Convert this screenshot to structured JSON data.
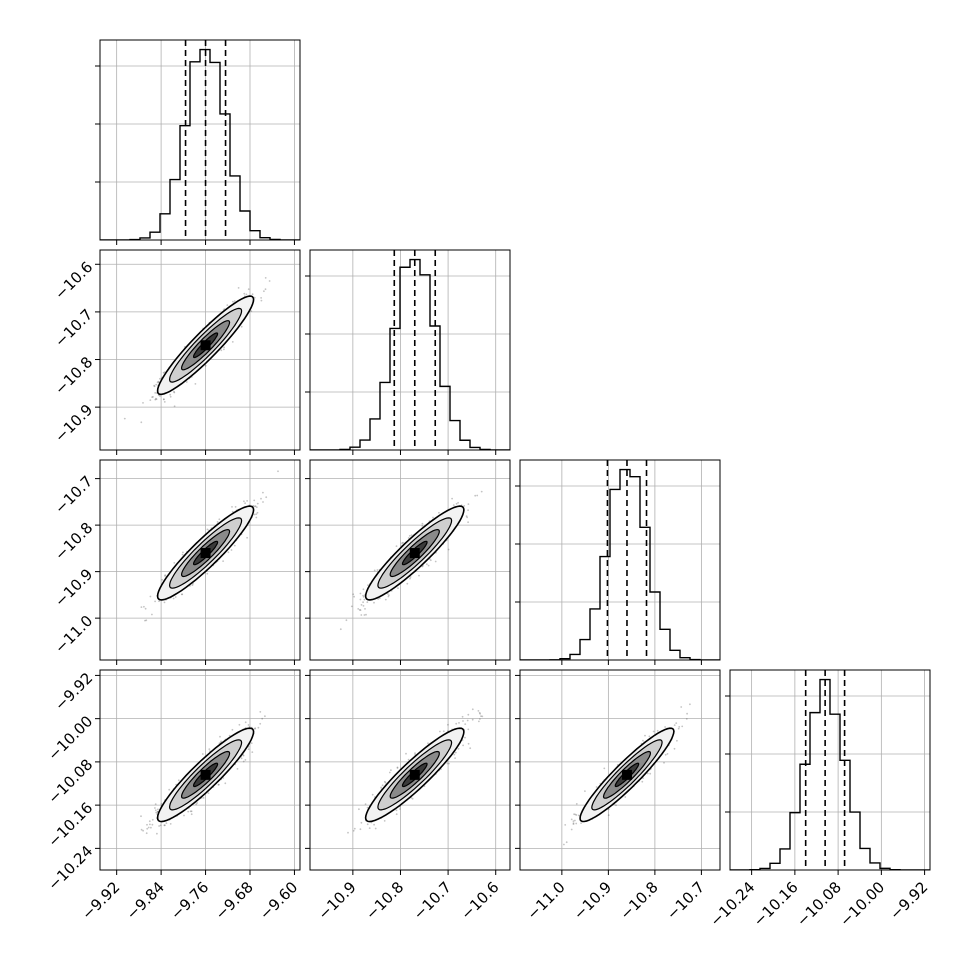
{
  "chart_data": {
    "type": "corner",
    "parameters": [
      "",
      "",
      "",
      ""
    ],
    "ranges": [
      [
        -9.95,
        -9.59
      ],
      [
        -10.99,
        -10.57
      ],
      [
        -11.09,
        -10.66
      ],
      [
        -10.28,
        -9.91
      ]
    ],
    "centers": [
      -9.76,
      -10.77,
      -10.86,
      -10.104
    ],
    "sigmas": [
      0.036,
      0.043,
      0.042,
      0.036
    ],
    "correlations": [
      [
        1,
        0.93,
        0.92,
        0.92
      ],
      [
        0.93,
        1,
        0.92,
        0.92
      ],
      [
        0.92,
        0.92,
        1,
        0.93
      ],
      [
        0.92,
        0.92,
        0.93,
        1
      ]
    ],
    "quantile_lines": [
      [
        -9.796,
        -9.76,
        -9.724
      ],
      [
        -10.813,
        -10.77,
        -10.727
      ],
      [
        -10.902,
        -10.86,
        -10.818
      ],
      [
        -10.14,
        -10.104,
        -10.068
      ]
    ],
    "y_ticks": [
      null,
      [
        -10.6,
        -10.7,
        -10.8,
        -10.9
      ],
      [
        -10.7,
        -10.8,
        -10.9,
        -11.0
      ],
      [
        -9.92,
        -10.0,
        -10.08,
        -10.16,
        -10.24
      ]
    ],
    "x_ticks": [
      [
        -9.92,
        -9.84,
        -9.76,
        -9.68,
        -9.6
      ],
      [
        -10.9,
        -10.8,
        -10.7,
        -10.6
      ],
      [
        -11.0,
        -10.9,
        -10.8,
        -10.7
      ],
      [
        -10.24,
        -10.16,
        -10.08,
        -10.0,
        -9.92
      ]
    ],
    "y_tick_labels": [
      null,
      [
        "−10.6",
        "−10.7",
        "−10.8",
        "−10.9"
      ],
      [
        "−10.7",
        "−10.8",
        "−10.9",
        "−11.0"
      ],
      [
        "−9.92",
        "−10.00",
        "−10.08",
        "−10.16",
        "−10.24"
      ]
    ],
    "x_tick_labels": [
      [
        "−9.92",
        "−9.84",
        "−9.76",
        "−9.68",
        "−9.60"
      ],
      [
        "−10.9",
        "−10.8",
        "−10.7",
        "−10.6"
      ],
      [
        "−11.0",
        "−10.9",
        "−10.8",
        "−10.7"
      ],
      [
        "−10.24",
        "−10.16",
        "−10.08",
        "−10.00",
        "−9.92"
      ]
    ],
    "histogram_bins": 20,
    "grid": true,
    "colors": {
      "line": "#000000",
      "points": "#555555",
      "grid": "#b0b0b0"
    }
  }
}
